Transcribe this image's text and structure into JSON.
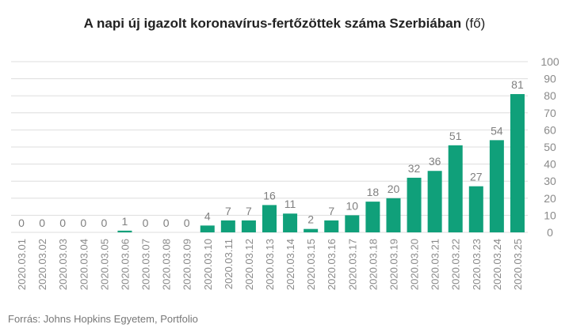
{
  "title_main": "A napi új igazolt koronavírus-fertőzöttek száma Szerbiában",
  "title_unit": "(fő)",
  "source": "Forrás: Johns Hopkins Egyetem, Portfolio",
  "colors": {
    "bar": "#10a07a",
    "grid": "#dddddd",
    "label": "#7f7f7f",
    "tick": "#8a8a8a"
  },
  "chart_data": {
    "type": "bar",
    "title": "A napi új igazolt koronavírus-fertőzöttek száma Szerbiában (fő)",
    "categories": [
      "2020.03.01",
      "2020.03.02",
      "2020.03.03",
      "2020.03.04",
      "2020.03.05",
      "2020.03.06",
      "2020.03.07",
      "2020.03.08",
      "2020.03.09",
      "2020.03.10",
      "2020.03.11",
      "2020.03.12",
      "2020.03.13",
      "2020.03.14",
      "2020.03.15",
      "2020.03.16",
      "2020.03.17",
      "2020.03.18",
      "2020.03.19",
      "2020.03.20",
      "2020.03.21",
      "2020.03.22",
      "2020.03.23",
      "2020.03.24",
      "2020.03.25"
    ],
    "values": [
      0,
      0,
      0,
      0,
      0,
      1,
      0,
      0,
      0,
      4,
      7,
      7,
      16,
      11,
      2,
      7,
      10,
      18,
      20,
      32,
      36,
      51,
      27,
      54,
      81
    ],
    "ylim": [
      0,
      100
    ],
    "yticks": [
      0,
      10,
      20,
      30,
      40,
      50,
      60,
      70,
      80,
      90,
      100
    ],
    "y_axis_side": "right",
    "grid": true,
    "data_labels": true
  }
}
